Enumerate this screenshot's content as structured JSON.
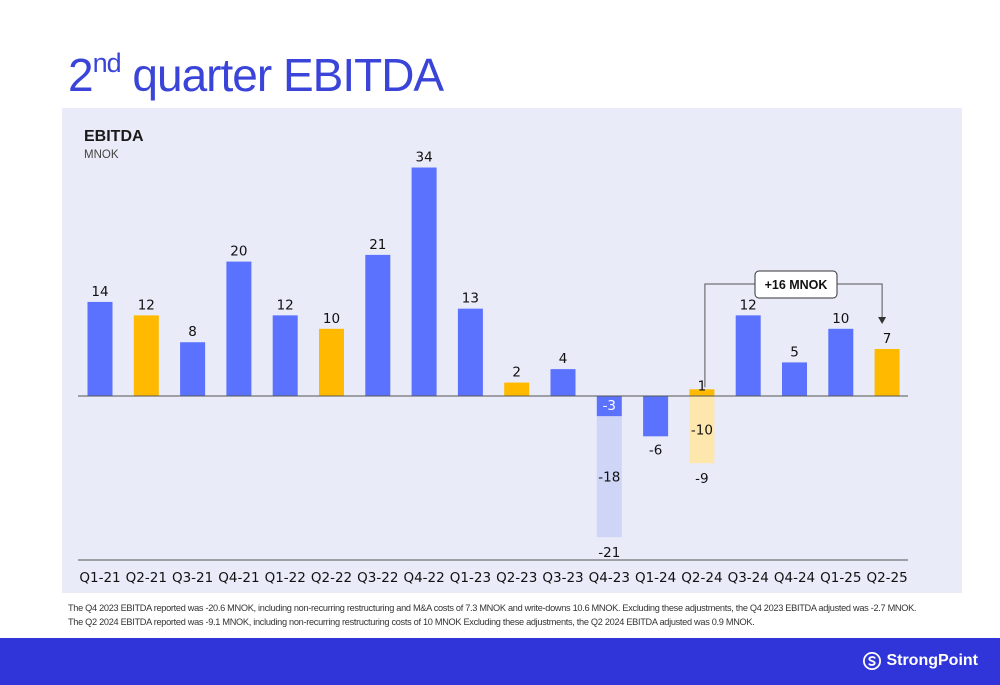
{
  "page": {
    "title_main": "2",
    "title_sup": "nd",
    "title_rest": " quarter EBITDA",
    "footnotes": [
      "The Q4 2023 EBITDA reported was -20.6 MNOK, including non-recurring restructuring and M&A costs of 7.3 MNOK and write-downs 10.6 MNOK. Excluding these adjustments, the Q4 2023 EBITDA adjusted was -2.7 MNOK.",
      "The Q2 2024 EBITDA reported was -9.1 MNOK, including non-recurring restructuring costs of 10 MNOK Excluding these adjustments, the Q2 2024 EBITDA adjusted was 0.9 MNOK."
    ],
    "logo_text": "StrongPoint",
    "logo_icon": "strongpoint-s-icon"
  },
  "chart_data": {
    "type": "bar",
    "title": "EBITDA",
    "ylabel": "MNOK",
    "categories": [
      "Q1-21",
      "Q2-21",
      "Q3-21",
      "Q4-21",
      "Q1-22",
      "Q2-22",
      "Q3-22",
      "Q4-22",
      "Q1-23",
      "Q2-23",
      "Q3-23",
      "Q4-23",
      "Q1-24",
      "Q2-24",
      "Q3-24",
      "Q4-24",
      "Q1-25",
      "Q2-25"
    ],
    "values": [
      14,
      12,
      8,
      20,
      12,
      10,
      21,
      34,
      13,
      2,
      4,
      -3,
      -6,
      1,
      12,
      5,
      10,
      7
    ],
    "value_labels": [
      "14",
      "12",
      "8",
      "20",
      "12",
      "10",
      "21",
      "34",
      "13",
      "2",
      "4",
      "-3",
      "-6",
      "1",
      "12",
      "5",
      "10",
      "7"
    ],
    "highlight_quarters": [
      "Q2-21",
      "Q2-22",
      "Q2-23",
      "Q2-24",
      "Q2-25"
    ],
    "adjustments": [
      {
        "category": "Q4-23",
        "value": -18,
        "label": "-18",
        "reported_label": "-21"
      },
      {
        "category": "Q2-24",
        "value": -10,
        "label": "-10",
        "reported_label": "-9"
      }
    ],
    "annotation": {
      "text": "+16 MNOK",
      "from": "Q2-24",
      "to": "Q2-25"
    },
    "ylim": [
      -23,
      36
    ],
    "grid": false,
    "colors": {
      "bar": "#5b72ff",
      "highlight": "#ffba00",
      "adjustment_q4_23": "#cfd5f6",
      "adjustment_q2_24": "#fde7ad",
      "axis": "#555555",
      "title": "#3a44d8",
      "band": "#2f35d8",
      "panel": "#e9ebf8"
    }
  }
}
